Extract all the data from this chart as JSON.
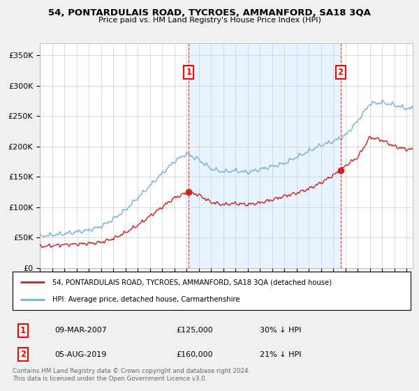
{
  "title": "54, PONTARDULAIS ROAD, TYCROES, AMMANFORD, SA18 3QA",
  "subtitle": "Price paid vs. HM Land Registry's House Price Index (HPI)",
  "ylabel_ticks": [
    "£0",
    "£50K",
    "£100K",
    "£150K",
    "£200K",
    "£250K",
    "£300K",
    "£350K"
  ],
  "ylim": [
    0,
    370000
  ],
  "xlim_start": 1995.0,
  "xlim_end": 2025.5,
  "sale1_x": 2007.19,
  "sale1_y": 125000,
  "sale1_label": "1",
  "sale1_date": "09-MAR-2007",
  "sale1_price": "£125,000",
  "sale1_hpi": "30% ↓ HPI",
  "sale2_x": 2019.59,
  "sale2_y": 160000,
  "sale2_label": "2",
  "sale2_date": "05-AUG-2019",
  "sale2_price": "£160,000",
  "sale2_hpi": "21% ↓ HPI",
  "legend_line1": "54, PONTARDULAIS ROAD, TYCROES, AMMANFORD, SA18 3QA (detached house)",
  "legend_line2": "HPI: Average price, detached house, Carmarthenshire",
  "footer1": "Contains HM Land Registry data © Crown copyright and database right 2024.",
  "footer2": "This data is licensed under the Open Government Licence v3.0.",
  "hpi_color": "#7ab0d4",
  "price_color": "#cc2222",
  "background_color": "#f0f0f0",
  "plot_bg_color": "#ffffff",
  "shade_color": "#ddeeff",
  "grid_color": "#cccccc",
  "hpi_knots_x": [
    1995,
    1997,
    1999,
    2000,
    2001,
    2002,
    2003,
    2004,
    2005,
    2006,
    2007,
    2008,
    2009,
    2010,
    2011,
    2012,
    2013,
    2014,
    2015,
    2016,
    2017,
    2018,
    2019,
    2020,
    2021,
    2022,
    2023,
    2024,
    2025
  ],
  "hpi_knots_y": [
    52000,
    56000,
    62000,
    68000,
    80000,
    95000,
    115000,
    135000,
    155000,
    175000,
    188000,
    178000,
    163000,
    158000,
    160000,
    157000,
    162000,
    167000,
    172000,
    182000,
    192000,
    202000,
    208000,
    218000,
    242000,
    270000,
    272000,
    268000,
    262000
  ],
  "price_knots_x": [
    1995,
    1997,
    1999,
    2000,
    2001,
    2002,
    2003,
    2004,
    2005,
    2006,
    2007.19,
    2008,
    2009,
    2010,
    2011,
    2012,
    2013,
    2014,
    2015,
    2016,
    2017,
    2018,
    2019.59,
    2020,
    2021,
    2022,
    2023,
    2024,
    2025
  ],
  "price_knots_y": [
    35000,
    38000,
    40000,
    42000,
    48000,
    58000,
    70000,
    85000,
    100000,
    115000,
    125000,
    120000,
    108000,
    104000,
    106000,
    104000,
    107000,
    112000,
    118000,
    123000,
    130000,
    140000,
    160000,
    168000,
    182000,
    215000,
    210000,
    200000,
    195000
  ]
}
